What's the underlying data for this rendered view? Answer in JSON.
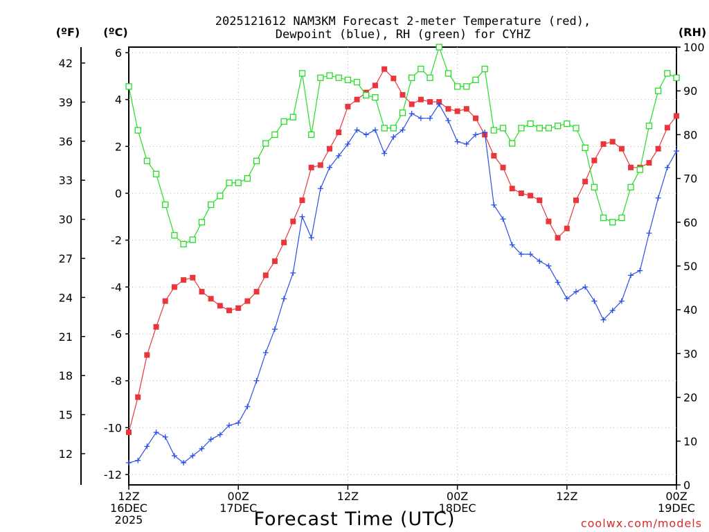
{
  "chart_data": {
    "type": "line",
    "title_line1": "2025121612 NAM3KM Forecast 2-meter Temperature (red),",
    "title_line2": "Dewpoint (blue), RH (green) for CYHZ",
    "left_outer_unit": "(ºF)",
    "left_inner_unit": "(ºC)",
    "right_unit": "(RH)",
    "xlabel": "Forecast Time (UTC)",
    "credit": "coolwx.com/models",
    "x_unit": "forecast hour",
    "xlim": [
      0,
      60
    ],
    "c_ylim": [
      -12.4,
      6.3
    ],
    "rh_ylim": [
      0,
      100
    ],
    "c_ticks": [
      "6",
      "4",
      "2",
      "0",
      "-2",
      "-4",
      "-6",
      "-8",
      "-10",
      "-12"
    ],
    "c_tick_values": [
      6,
      4,
      2,
      0,
      -2,
      -4,
      -6,
      -8,
      -10,
      -12
    ],
    "f_ticks": [
      "42",
      "39",
      "36",
      "33",
      "30",
      "27",
      "24",
      "21",
      "18",
      "15",
      "12"
    ],
    "f_tick_values": [
      42,
      39,
      36,
      33,
      30,
      27,
      24,
      21,
      18,
      15,
      12
    ],
    "rh_ticks": [
      "100",
      "90",
      "80",
      "70",
      "60",
      "50",
      "40",
      "30",
      "20",
      "10",
      "0"
    ],
    "rh_tick_values": [
      100,
      90,
      80,
      70,
      60,
      50,
      40,
      30,
      20,
      10,
      0
    ],
    "x_ticks": [
      {
        "hour": 0,
        "line1": "12Z",
        "line2": "16DEC",
        "line3": "2025"
      },
      {
        "hour": 12,
        "line1": "00Z",
        "line2": "17DEC",
        "line3": ""
      },
      {
        "hour": 24,
        "line1": "12Z",
        "line2": "",
        "line3": ""
      },
      {
        "hour": 36,
        "line1": "00Z",
        "line2": "18DEC",
        "line3": ""
      },
      {
        "hour": 48,
        "line1": "12Z",
        "line2": "",
        "line3": ""
      },
      {
        "hour": 60,
        "line1": "00Z",
        "line2": "19DEC",
        "line3": ""
      }
    ],
    "hours": [
      0,
      1,
      2,
      3,
      4,
      5,
      6,
      7,
      8,
      9,
      10,
      11,
      12,
      13,
      14,
      15,
      16,
      17,
      18,
      19,
      20,
      21,
      22,
      23,
      24,
      25,
      26,
      27,
      28,
      29,
      30,
      31,
      32,
      33,
      34,
      35,
      36,
      37,
      38,
      39,
      40,
      41,
      42,
      43,
      44,
      45,
      46,
      47,
      48,
      49,
      50,
      51,
      52,
      53,
      54,
      55,
      56,
      57,
      58,
      59,
      60
    ],
    "series": [
      {
        "name": "Temperature (°C)",
        "color": "#e8363a",
        "marker": "square-filled",
        "axis": "celsius",
        "values": [
          -10.2,
          -8.7,
          -6.9,
          -5.7,
          -4.6,
          -4.0,
          -3.7,
          -3.6,
          -4.2,
          -4.5,
          -4.8,
          -5.0,
          -4.9,
          -4.6,
          -4.2,
          -3.5,
          -2.9,
          -2.1,
          -1.2,
          -0.3,
          1.1,
          1.2,
          1.9,
          2.6,
          3.7,
          4.0,
          4.3,
          4.6,
          5.3,
          4.9,
          4.2,
          3.8,
          4.0,
          3.9,
          3.9,
          3.6,
          3.5,
          3.6,
          3.2,
          2.5,
          1.6,
          1.1,
          0.2,
          0.0,
          -0.1,
          -0.3,
          -1.2,
          -1.9,
          -1.5,
          -0.3,
          0.5,
          1.4,
          2.1,
          2.2,
          1.9,
          1.1,
          1.1,
          1.3,
          1.9,
          2.8,
          3.3
        ]
      },
      {
        "name": "Dewpoint (°C)",
        "color": "#2a4ee8",
        "marker": "plus",
        "axis": "celsius",
        "values": [
          -11.5,
          -11.4,
          -10.8,
          -10.2,
          -10.4,
          -11.2,
          -11.5,
          -11.2,
          -10.9,
          -10.5,
          -10.3,
          -9.9,
          -9.8,
          -9.1,
          -8.0,
          -6.8,
          -5.8,
          -4.5,
          -3.4,
          -1.0,
          -1.9,
          0.2,
          1.1,
          1.6,
          2.1,
          2.7,
          2.5,
          2.7,
          1.7,
          2.4,
          2.7,
          3.4,
          3.2,
          3.2,
          3.8,
          3.1,
          2.2,
          2.1,
          2.5,
          2.6,
          -0.5,
          -1.1,
          -2.2,
          -2.6,
          -2.6,
          -2.9,
          -3.1,
          -3.8,
          -4.5,
          -4.2,
          -4.0,
          -4.6,
          -5.4,
          -5.0,
          -4.6,
          -3.5,
          -3.3,
          -1.7,
          -0.2,
          1.1,
          1.8
        ]
      },
      {
        "name": "RH (%)",
        "color": "#22dd22",
        "marker": "square-open",
        "axis": "rh",
        "values": [
          91,
          81,
          74,
          71,
          64,
          57,
          55,
          56,
          60,
          64,
          66,
          69,
          69,
          70,
          74,
          78,
          80,
          83,
          84,
          94,
          80,
          93,
          93.5,
          93,
          92.5,
          92,
          89,
          88.5,
          81.5,
          81.5,
          85,
          93,
          95,
          93,
          100,
          94,
          91,
          91,
          92.5,
          95,
          81,
          81.5,
          78,
          81.5,
          82.5,
          81.5,
          81.5,
          82,
          82.5,
          81.5,
          77,
          68,
          61,
          60,
          61,
          68,
          72,
          82,
          90,
          94,
          93
        ]
      }
    ]
  }
}
